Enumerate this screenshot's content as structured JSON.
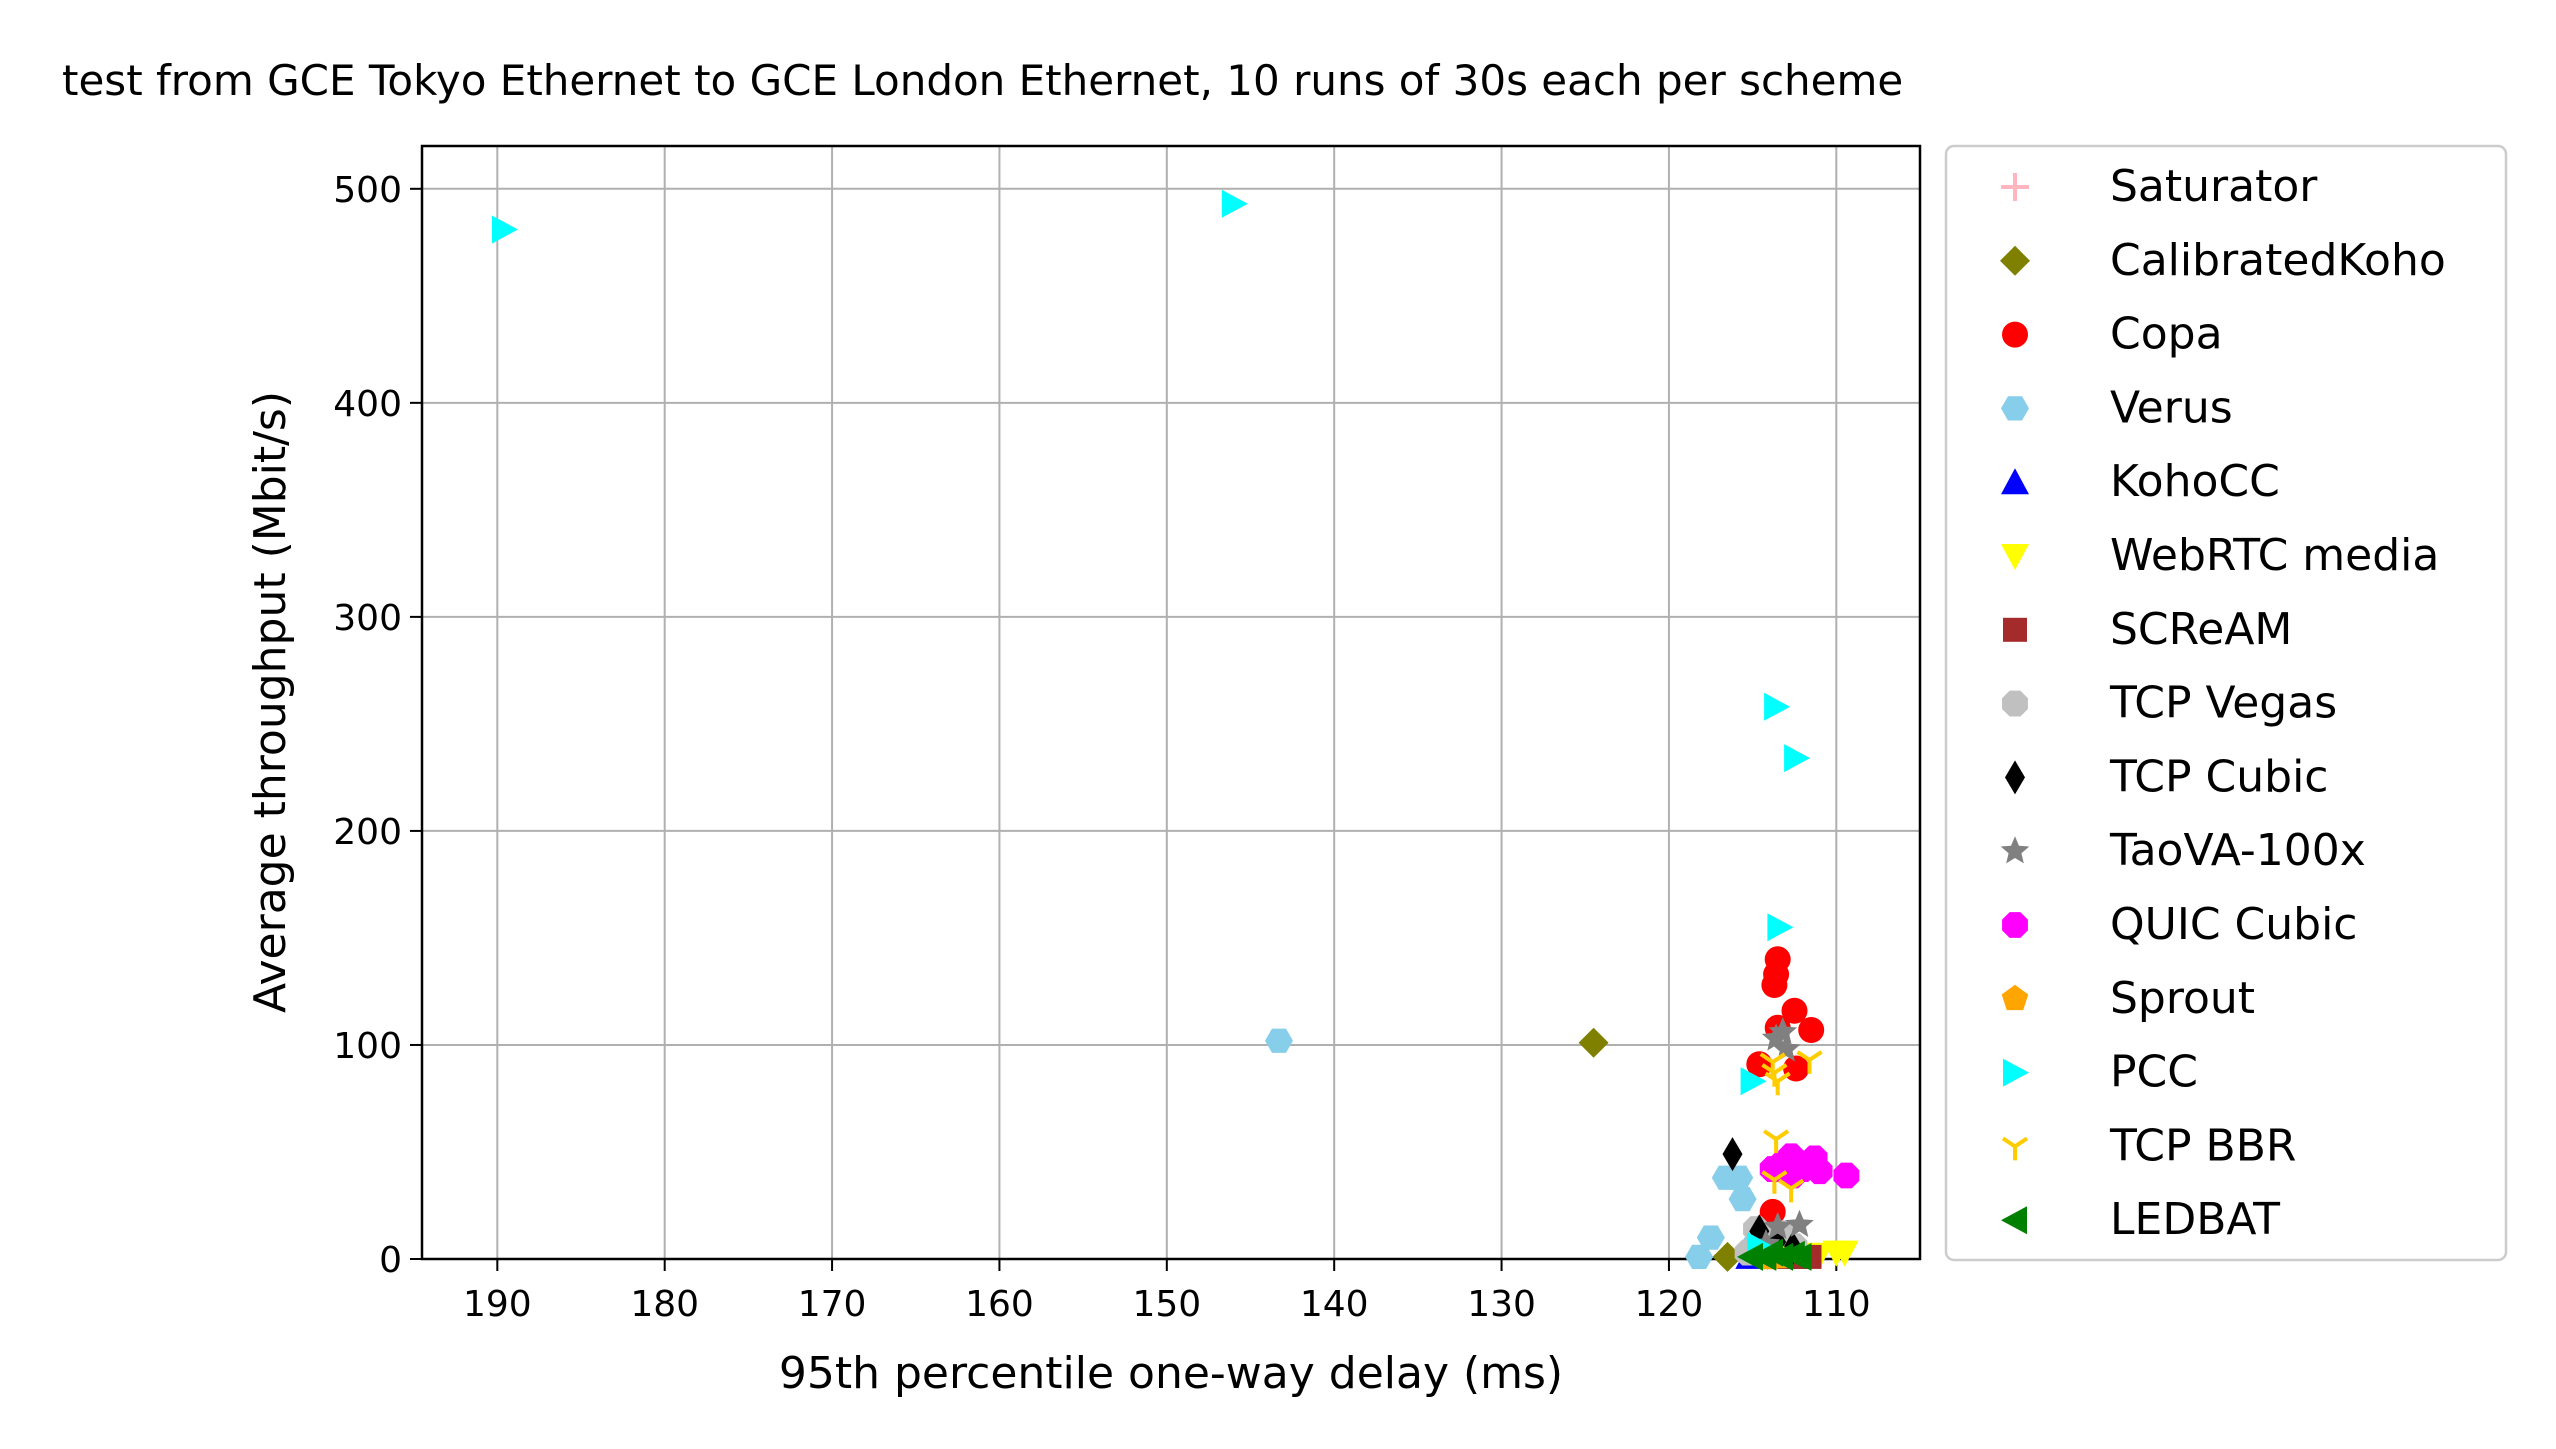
{
  "chart_data": {
    "type": "scatter",
    "title": "test from GCE Tokyo Ethernet to GCE London Ethernet, 10 runs of 30s each per scheme",
    "xlabel": "95th percentile one-way delay (ms)",
    "ylabel": "Average throughput (Mbit/s)",
    "xlim": [
      194.5,
      105
    ],
    "ylim": [
      0,
      520
    ],
    "x_inverted": true,
    "grid": true,
    "legend_position": "right",
    "xticks": [
      190,
      180,
      170,
      160,
      150,
      140,
      130,
      120,
      110
    ],
    "yticks": [
      0,
      100,
      200,
      300,
      400,
      500
    ],
    "series": [
      {
        "name": "Saturator",
        "marker": "plus",
        "color": "#ffb6c1",
        "points": []
      },
      {
        "name": "CalibratedKoho",
        "marker": "diamond",
        "color": "#808000",
        "points": [
          [
            124.5,
            101
          ],
          [
            116.5,
            1
          ],
          [
            114.5,
            2
          ]
        ]
      },
      {
        "name": "Copa",
        "marker": "circle",
        "color": "#ff0000",
        "points": [
          [
            113.5,
            140
          ],
          [
            113.6,
            133
          ],
          [
            113.7,
            128
          ],
          [
            112.5,
            116
          ],
          [
            111.5,
            107
          ],
          [
            113.5,
            108
          ],
          [
            114.6,
            91
          ],
          [
            112.4,
            89
          ],
          [
            113.8,
            22
          ]
        ]
      },
      {
        "name": "Verus",
        "marker": "hexagon",
        "color": "#87ceeb",
        "points": [
          [
            143.3,
            102
          ],
          [
            116.6,
            38
          ],
          [
            115.8,
            38
          ],
          [
            115.6,
            28
          ],
          [
            117.5,
            10
          ],
          [
            118.2,
            1
          ],
          [
            114.8,
            8
          ]
        ]
      },
      {
        "name": "KohoCC",
        "marker": "triangle-up",
        "color": "#0000ff",
        "points": [
          [
            115.2,
            1
          ],
          [
            114.2,
            2
          ],
          [
            113.2,
            1
          ]
        ]
      },
      {
        "name": "WebRTC media",
        "marker": "triangle-down",
        "color": "#ffff00",
        "points": [
          [
            110.0,
            3
          ],
          [
            111.0,
            2
          ],
          [
            109.5,
            3
          ]
        ]
      },
      {
        "name": "SCReAM",
        "marker": "square",
        "color": "#a52a2a",
        "points": [
          [
            111.6,
            1
          ],
          [
            112.2,
            1
          ],
          [
            113.1,
            1
          ]
        ]
      },
      {
        "name": "TCP Vegas",
        "marker": "octagon",
        "color": "#c0c0c0",
        "points": [
          [
            114.8,
            14
          ],
          [
            113.3,
            12
          ],
          [
            112.5,
            6
          ],
          [
            115.3,
            3
          ]
        ]
      },
      {
        "name": "TCP Cubic",
        "marker": "thin-diamond",
        "color": "#000000",
        "points": [
          [
            116.2,
            49
          ],
          [
            114.6,
            13
          ],
          [
            113.6,
            8
          ],
          [
            112.6,
            5
          ],
          [
            114.1,
            3
          ]
        ]
      },
      {
        "name": "TaoVA-100x",
        "marker": "star",
        "color": "#808080",
        "points": [
          [
            113.2,
            106
          ],
          [
            113.6,
            103
          ],
          [
            113.0,
            98
          ],
          [
            112.2,
            16
          ],
          [
            113.5,
            15
          ],
          [
            114.2,
            7
          ]
        ]
      },
      {
        "name": "QUIC Cubic",
        "marker": "octagon",
        "color": "#ff00ff",
        "points": [
          [
            112.7,
            48
          ],
          [
            111.3,
            47
          ],
          [
            113.3,
            44
          ],
          [
            112.0,
            42
          ],
          [
            111.0,
            41
          ],
          [
            113.8,
            42
          ],
          [
            109.4,
            39
          ],
          [
            112.6,
            39
          ]
        ]
      },
      {
        "name": "Sprout",
        "marker": "pentagon",
        "color": "#ffa500",
        "points": [
          [
            113.4,
            1
          ],
          [
            114.0,
            0.5
          ]
        ]
      },
      {
        "name": "PCC",
        "marker": "triangle-right",
        "color": "#00ffff",
        "points": [
          [
            189.6,
            481
          ],
          [
            146.0,
            493
          ],
          [
            113.6,
            258
          ],
          [
            112.4,
            234
          ],
          [
            113.4,
            155
          ],
          [
            115.0,
            83
          ],
          [
            114.6,
            6
          ]
        ]
      },
      {
        "name": "TCP BBR",
        "marker": "tri-down",
        "color": "#ffcc00",
        "points": [
          [
            113.8,
            92
          ],
          [
            113.7,
            87
          ],
          [
            113.5,
            83
          ],
          [
            111.6,
            93
          ],
          [
            113.6,
            56
          ],
          [
            113.7,
            37
          ],
          [
            112.7,
            33
          ]
        ]
      },
      {
        "name": "LEDBAT",
        "marker": "triangle-left",
        "color": "#008000",
        "points": [
          [
            114.3,
            1
          ],
          [
            113.3,
            1
          ],
          [
            112.6,
            2
          ],
          [
            115.1,
            1
          ],
          [
            113.9,
            3
          ],
          [
            112.2,
            1
          ]
        ]
      }
    ]
  }
}
